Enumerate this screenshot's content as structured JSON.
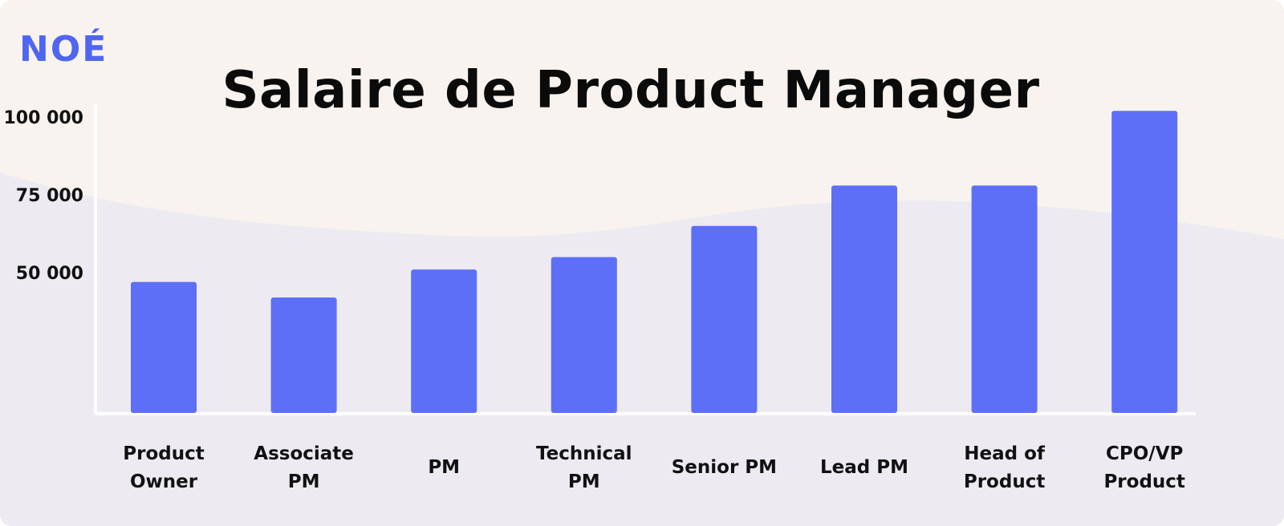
{
  "brand": {
    "logo_text": "NOÉ",
    "accent": "#5e6ff7",
    "logo_color": "#4f66f2"
  },
  "chart_data": {
    "type": "bar",
    "title": "Salaire de Product Manager",
    "xlabel": "",
    "ylabel": "",
    "categories": [
      [
        "Product",
        "Owner"
      ],
      [
        "Associate",
        "PM"
      ],
      [
        "PM"
      ],
      [
        "Technical",
        "PM"
      ],
      [
        "Senior PM"
      ],
      [
        "Lead PM"
      ],
      [
        "Head of",
        "Product"
      ],
      [
        "CPO/VP",
        "Product"
      ]
    ],
    "values": [
      47000,
      42000,
      51000,
      55000,
      65000,
      78000,
      78000,
      102000
    ],
    "yticks": [
      {
        "value": 50000,
        "label": "50 000"
      },
      {
        "value": 75000,
        "label": "75 000"
      },
      {
        "value": 100000,
        "label": "100 000"
      }
    ],
    "ylim": [
      0,
      100000
    ],
    "grid": false,
    "bar_color": "#5e6ff7"
  }
}
